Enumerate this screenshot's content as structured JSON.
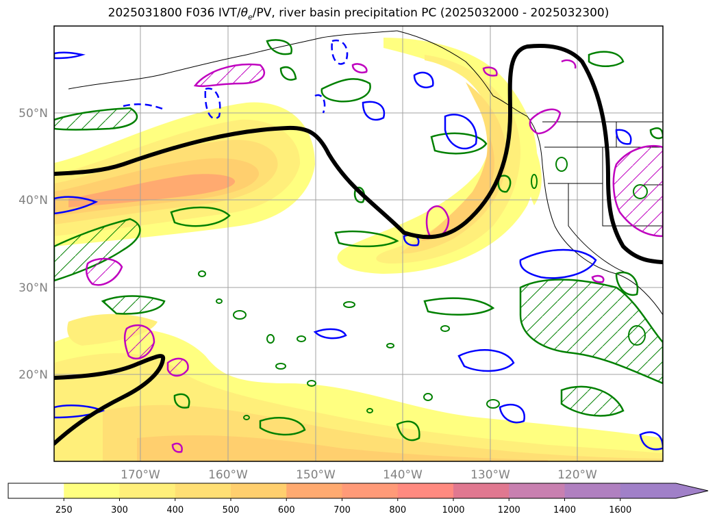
{
  "title": {
    "prefix": "2025031800 F036 IVT/",
    "theta": "θ",
    "theta_sub": "e",
    "suffix": "/PV, river basin precipitation PC (2025032000 - 2025032300)"
  },
  "map": {
    "lat_labels": [
      "50°N",
      "40°N",
      "30°N",
      "20°N"
    ],
    "lon_labels": [
      "170°W",
      "160°W",
      "150°W",
      "140°W",
      "130°W",
      "120°W"
    ],
    "colors": {
      "coast": "#000000",
      "pv_contour": "#000000",
      "green_contour": "#008000",
      "blue_contour": "#0000ff",
      "magenta_contour": "#bf00bf"
    }
  },
  "colorbar": {
    "ticks": [
      "250",
      "300",
      "400",
      "500",
      "600",
      "700",
      "800",
      "1000",
      "1200",
      "1400",
      "1600"
    ],
    "colors": [
      "#ffffff",
      "#ffff80",
      "#ffef7a",
      "#ffdf74",
      "#ffcf6e",
      "#ffaa70",
      "#ff9a78",
      "#ff8a80",
      "#e07890",
      "#c880b0",
      "#b080c0",
      "#a080c8"
    ]
  }
}
